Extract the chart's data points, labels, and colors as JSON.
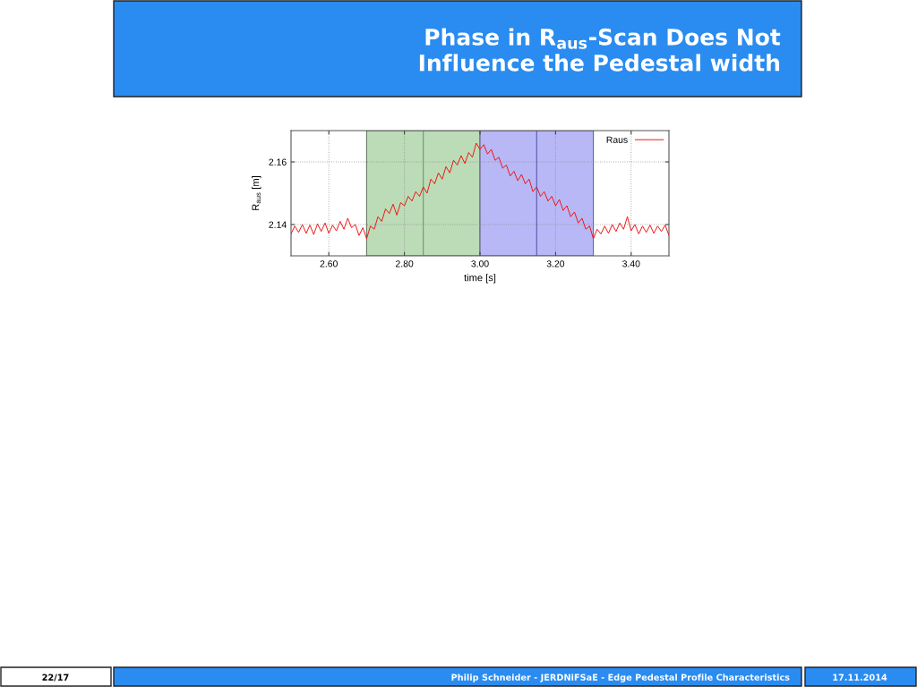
{
  "chart_data": {
    "type": "line",
    "title": "Phase in R$_{aus}$-Scan Does Not Influence the Pedestal width",
    "xlabel": "time [s]",
    "ylabel": "R$_{aus}$ [m]",
    "x": [
      2.5,
      2.51,
      2.52,
      2.53,
      2.54,
      2.55,
      2.56,
      2.57,
      2.58,
      2.59,
      2.6,
      2.61,
      2.62,
      2.63,
      2.64,
      2.65,
      2.66,
      2.67,
      2.68,
      2.69,
      2.7,
      2.71,
      2.72,
      2.73,
      2.74,
      2.75,
      2.76,
      2.77,
      2.78,
      2.79,
      2.8,
      2.81,
      2.82,
      2.83,
      2.84,
      2.85,
      2.86,
      2.87,
      2.88,
      2.89,
      2.9,
      2.91,
      2.92,
      2.93,
      2.94,
      2.95,
      2.96,
      2.97,
      2.98,
      2.99,
      3.0,
      3.01,
      3.02,
      3.03,
      3.04,
      3.05,
      3.06,
      3.07,
      3.08,
      3.09,
      3.1,
      3.11,
      3.12,
      3.13,
      3.14,
      3.15,
      3.16,
      3.17,
      3.18,
      3.19,
      3.2,
      3.21,
      3.22,
      3.23,
      3.24,
      3.25,
      3.26,
      3.27,
      3.28,
      3.29,
      3.3,
      3.31,
      3.32,
      3.33,
      3.34,
      3.35,
      3.36,
      3.37,
      3.38,
      3.39,
      3.4,
      3.41,
      3.42,
      3.43,
      3.44,
      3.45,
      3.46,
      3.47,
      3.48,
      3.49,
      3.5
    ],
    "series": [
      {
        "name": "Raus",
        "color": "#ee1111",
        "values": [
          2.137,
          2.1395,
          2.1375,
          2.14,
          2.1372,
          2.1398,
          2.1368,
          2.1402,
          2.1378,
          2.1405,
          2.1372,
          2.1398,
          2.138,
          2.141,
          2.1385,
          2.142,
          2.139,
          2.14,
          2.1365,
          2.139,
          2.1355,
          2.1395,
          2.1385,
          2.1425,
          2.141,
          2.145,
          2.1435,
          2.1465,
          2.143,
          2.147,
          2.146,
          2.149,
          2.1475,
          2.1505,
          2.149,
          2.152,
          2.15,
          2.1545,
          2.153,
          2.1565,
          2.1545,
          2.1585,
          2.1565,
          2.1605,
          2.159,
          2.162,
          2.1595,
          2.163,
          2.1615,
          2.166,
          2.164,
          2.1655,
          2.1625,
          2.164,
          2.1605,
          2.1615,
          2.158,
          2.159,
          2.1555,
          2.157,
          2.154,
          2.156,
          2.153,
          2.1545,
          2.1505,
          2.152,
          2.149,
          2.1505,
          2.1475,
          2.149,
          2.146,
          2.148,
          2.1445,
          2.146,
          2.1425,
          2.144,
          2.1405,
          2.142,
          2.1385,
          2.1395,
          2.1355,
          2.1385,
          2.137,
          2.1395,
          2.1372,
          2.14,
          2.1378,
          2.1405,
          2.1385,
          2.1425,
          2.138,
          2.14,
          2.137,
          2.1395,
          2.1375,
          2.1398,
          2.1372,
          2.1395,
          2.1378,
          2.1398,
          2.1365
        ]
      }
    ],
    "xlim": [
      2.5,
      3.5
    ],
    "ylim": [
      2.13,
      2.17
    ],
    "xticks": [
      {
        "value": 2.6,
        "label": "2.60"
      },
      {
        "value": 2.8,
        "label": "2.80"
      },
      {
        "value": 3.0,
        "label": "3.00"
      },
      {
        "value": 3.2,
        "label": "3.20"
      },
      {
        "value": 3.4,
        "label": "3.40"
      }
    ],
    "yticks": [
      2.14,
      2.16
    ],
    "bands": [
      {
        "axis": "x",
        "from": 2.7,
        "to": 3.0,
        "color": "#bcdcb8"
      },
      {
        "axis": "x",
        "from": 3.0,
        "to": 3.3,
        "color": "#b8b8f6"
      }
    ],
    "ref_lines": [
      {
        "axis": "x",
        "value": 2.85,
        "color": "#6a9a66"
      },
      {
        "axis": "x",
        "value": 3.15,
        "color": "#5a5ab0"
      }
    ],
    "grid": true,
    "legend": "top right",
    "line_style": "solid",
    "annotations": [
      "22/17",
      "Philip Schneider - JERDNiFSaE - Edge Pedestal Profile Characteristics",
      "17.11.2014"
    ]
  }
}
